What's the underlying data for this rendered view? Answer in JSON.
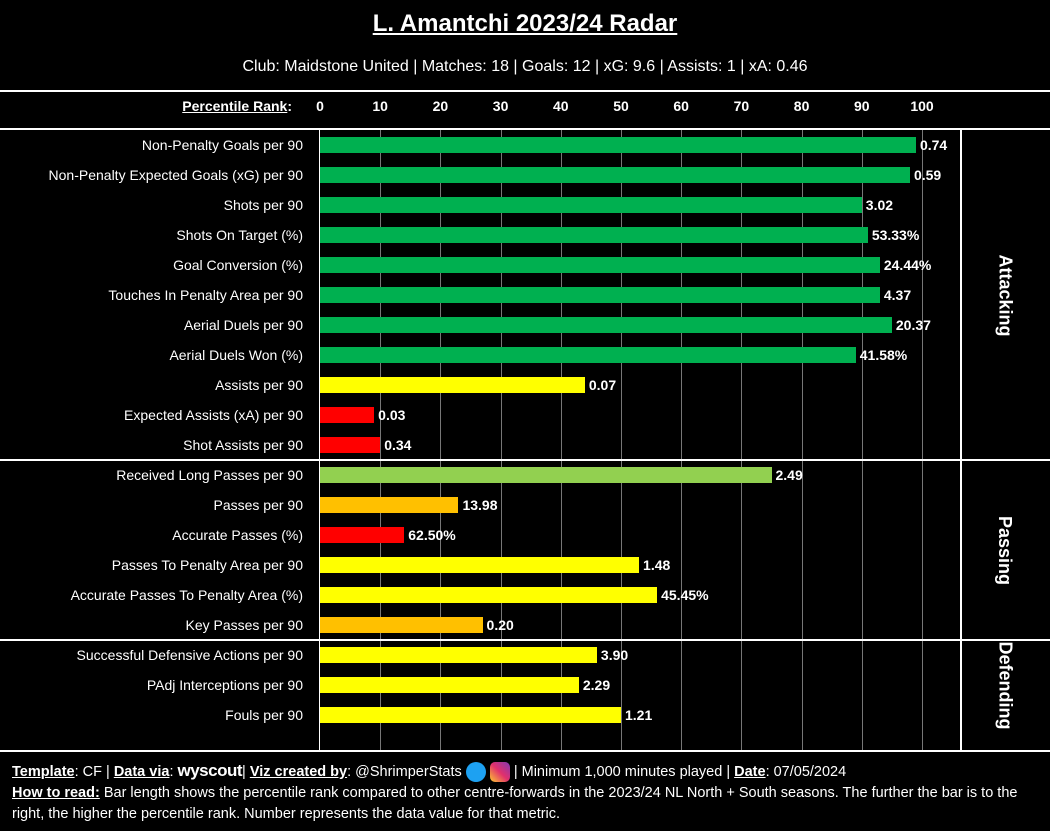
{
  "title": "L. Amantchi 2023/24 Radar",
  "subtitle": "Club: Maidstone United | Matches: 18 | Goals: 12 | xG: 9.6 | Assists: 1 | xA: 0.46",
  "colors": {
    "green": "#00b050",
    "lightgreen": "#92d050",
    "yellow": "#ffff00",
    "orange": "#ffc000",
    "red": "#ff0000"
  },
  "chart_data": {
    "type": "bar",
    "orientation": "horizontal",
    "xlabel": "Percentile Rank",
    "xlim": [
      0,
      100
    ],
    "xticks": [
      "0",
      "10",
      "20",
      "30",
      "40",
      "50",
      "60",
      "70",
      "80",
      "90",
      "100"
    ],
    "grid": true,
    "sections": [
      {
        "name": "Attacking",
        "start": 0,
        "count": 11
      },
      {
        "name": "Passing",
        "start": 11,
        "count": 6
      },
      {
        "name": "Defending",
        "start": 17,
        "count": 3
      }
    ],
    "categories": [
      "Non-Penalty Goals per 90",
      "Non-Penalty Expected Goals (xG) per 90",
      "Shots per 90",
      "Shots On Target (%)",
      "Goal Conversion (%)",
      "Touches In Penalty Area per 90",
      "Aerial Duels per 90",
      "Aerial Duels Won (%)",
      "Assists per 90",
      "Expected Assists (xA) per 90",
      "Shot Assists per 90",
      "Received Long Passes per 90",
      "Passes per 90",
      "Accurate Passes (%)",
      "Passes To Penalty Area per 90",
      "Accurate Passes To Penalty Area (%)",
      "Key Passes per 90",
      "Successful Defensive Actions per 90",
      "PAdj Interceptions per 90",
      "Fouls per 90"
    ],
    "values": [
      99,
      98,
      90,
      91,
      93,
      93,
      95,
      89,
      44,
      9,
      10,
      75,
      23,
      14,
      53,
      56,
      27,
      46,
      43,
      50
    ],
    "labels": [
      "0.74",
      "0.59",
      "3.02",
      "53.33%",
      "24.44%",
      "4.37",
      "20.37",
      "41.58%",
      "0.07",
      "0.03",
      "0.34",
      "2.49",
      "13.98",
      "62.50%",
      "1.48",
      "45.45%",
      "0.20",
      "3.90",
      "2.29",
      "1.21"
    ],
    "bar_colors": [
      "#00b050",
      "#00b050",
      "#00b050",
      "#00b050",
      "#00b050",
      "#00b050",
      "#00b050",
      "#00b050",
      "#ffff00",
      "#ff0000",
      "#ff0000",
      "#92d050",
      "#ffc000",
      "#ff0000",
      "#ffff00",
      "#ffff00",
      "#ffc000",
      "#ffff00",
      "#ffff00",
      "#ffff00"
    ]
  },
  "footer": {
    "template_label": "Template",
    "template": ": CF | ",
    "data_label": "Data via",
    "data_source": "wyscout",
    "viz_label": "Viz created by",
    "viz_handle": ": @ShrimperStats",
    "minimum": " | Minimum 1,000 minutes played | ",
    "date_label": "Date",
    "date": ": 07/05/2024",
    "howto_label": "How to read:",
    "howto": " Bar length shows the percentile rank compared to other centre-forwards in the 2023/24 NL North + South seasons. The further the bar is to the right, the higher the percentile rank. Number represents the data value for that metric."
  }
}
